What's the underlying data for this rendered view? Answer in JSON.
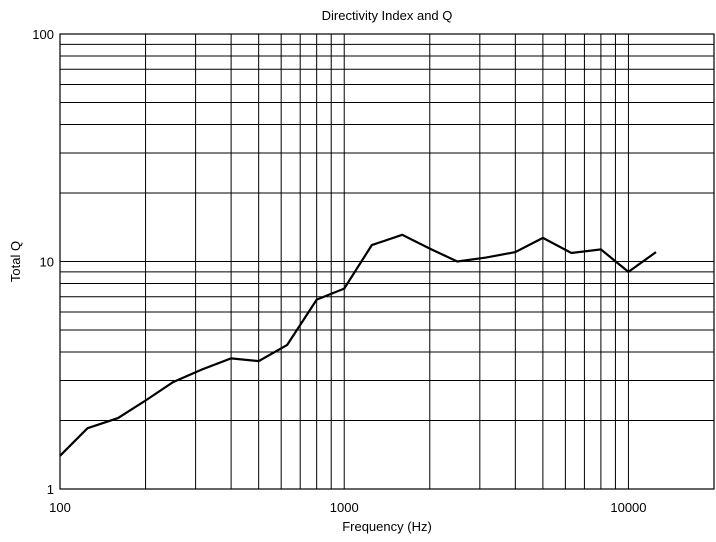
{
  "chart_data": {
    "type": "line",
    "title": "Directivity Index and Q",
    "xlabel": "Frequency (Hz)",
    "ylabel": "Total Q",
    "x_scale": "log",
    "y_scale": "log",
    "xlim": [
      100,
      20000
    ],
    "ylim": [
      1,
      100
    ],
    "grid": true,
    "x_ticks": [
      {
        "value": 100,
        "label": "100"
      },
      {
        "value": 1000,
        "label": "1000"
      },
      {
        "value": 10000,
        "label": "10000"
      }
    ],
    "y_ticks": [
      {
        "value": 1,
        "label": "1"
      },
      {
        "value": 10,
        "label": "10"
      },
      {
        "value": 100,
        "label": "100"
      }
    ],
    "series": [
      {
        "x": [
          100,
          125,
          160,
          200,
          250,
          315,
          400,
          500,
          630,
          800,
          1000,
          1250,
          1600,
          2000,
          2500,
          3150,
          4000,
          5000,
          6300,
          8000,
          10000,
          12500
        ],
        "y": [
          1.4,
          1.85,
          2.05,
          2.45,
          2.95,
          3.35,
          3.75,
          3.65,
          4.3,
          6.8,
          7.6,
          11.8,
          13.1,
          11.4,
          10.0,
          10.4,
          11.0,
          12.7,
          10.9,
          11.3,
          9.0,
          11.0
        ]
      }
    ]
  }
}
